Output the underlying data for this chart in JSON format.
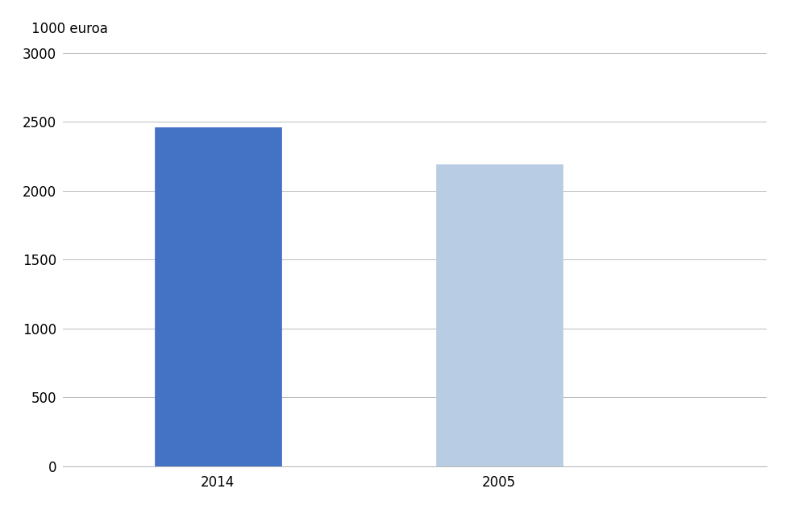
{
  "categories": [
    "2014",
    "2005"
  ],
  "values": [
    2460,
    2190
  ],
  "bar_colors": [
    "#4472C4",
    "#B8CCE4"
  ],
  "ylabel": "1000 euroa",
  "ylim": [
    0,
    3000
  ],
  "yticks": [
    0,
    500,
    1000,
    1500,
    2000,
    2500,
    3000
  ],
  "background_color": "#ffffff",
  "grid_color": "#bbbbbb",
  "bar_width": 0.18,
  "x_positions": [
    0.22,
    0.62
  ],
  "xlim": [
    0.0,
    1.0
  ]
}
